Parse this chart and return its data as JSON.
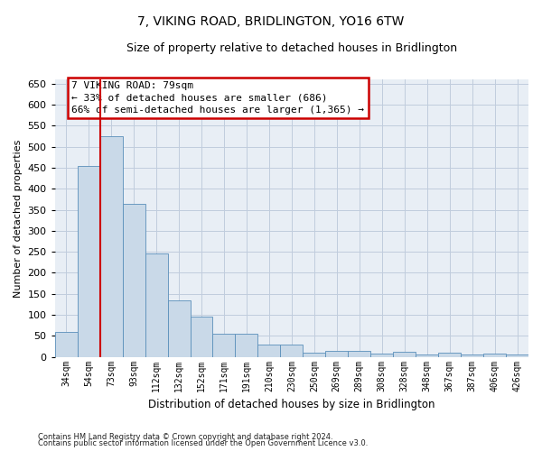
{
  "title": "7, VIKING ROAD, BRIDLINGTON, YO16 6TW",
  "subtitle": "Size of property relative to detached houses in Bridlington",
  "xlabel": "Distribution of detached houses by size in Bridlington",
  "ylabel": "Number of detached properties",
  "footnote1": "Contains HM Land Registry data © Crown copyright and database right 2024.",
  "footnote2": "Contains public sector information licensed under the Open Government Licence v3.0.",
  "annotation_title": "7 VIKING ROAD: 79sqm",
  "annotation_line1": "← 33% of detached houses are smaller (686)",
  "annotation_line2": "66% of semi-detached houses are larger (1,365) →",
  "bar_color": "#c9d9e8",
  "bar_edge_color": "#5a8fba",
  "vline_color": "#cc0000",
  "annotation_box_edge": "#cc0000",
  "grid_color": "#c0ccdd",
  "background_color": "#e8eef5",
  "categories": [
    "34sqm",
    "54sqm",
    "73sqm",
    "93sqm",
    "112sqm",
    "132sqm",
    "152sqm",
    "171sqm",
    "191sqm",
    "210sqm",
    "230sqm",
    "250sqm",
    "269sqm",
    "289sqm",
    "308sqm",
    "328sqm",
    "348sqm",
    "367sqm",
    "387sqm",
    "406sqm",
    "426sqm"
  ],
  "values": [
    60,
    455,
    525,
    365,
    245,
    135,
    95,
    55,
    55,
    30,
    30,
    10,
    15,
    15,
    7,
    12,
    5,
    10,
    5,
    7,
    5
  ],
  "vline_index": 2,
  "ylim": [
    0,
    660
  ],
  "yticks": [
    0,
    50,
    100,
    150,
    200,
    250,
    300,
    350,
    400,
    450,
    500,
    550,
    600,
    650
  ]
}
